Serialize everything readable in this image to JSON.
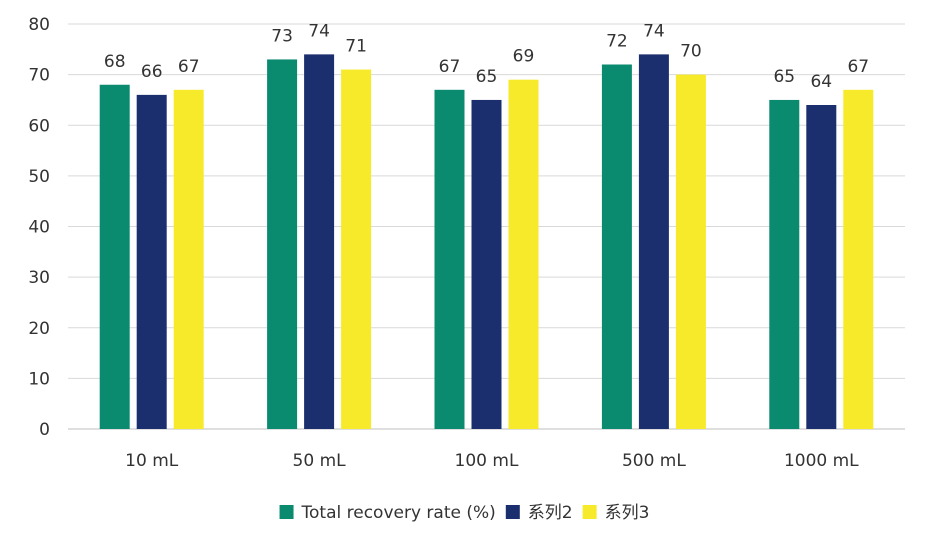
{
  "chart_data": {
    "type": "bar",
    "title": "",
    "xlabel": "",
    "ylabel": "",
    "categories": [
      "10 mL",
      "50 mL",
      "100 mL",
      "500 mL",
      "1000 mL"
    ],
    "series": [
      {
        "name": "Total recovery rate (%)",
        "color": "#0a8a6e",
        "values": [
          68,
          73,
          67,
          72,
          65
        ]
      },
      {
        "name": "系列2",
        "color": "#1b2f6e",
        "values": [
          66,
          74,
          65,
          74,
          64
        ]
      },
      {
        "name": "系列3",
        "color": "#f7ea2a",
        "values": [
          67,
          71,
          69,
          70,
          67
        ]
      }
    ],
    "ylim": [
      0,
      80
    ],
    "yticks": [
      0,
      10,
      20,
      30,
      40,
      50,
      60,
      70,
      80
    ],
    "grid": true,
    "legend_position": "bottom",
    "data_labels": true
  }
}
